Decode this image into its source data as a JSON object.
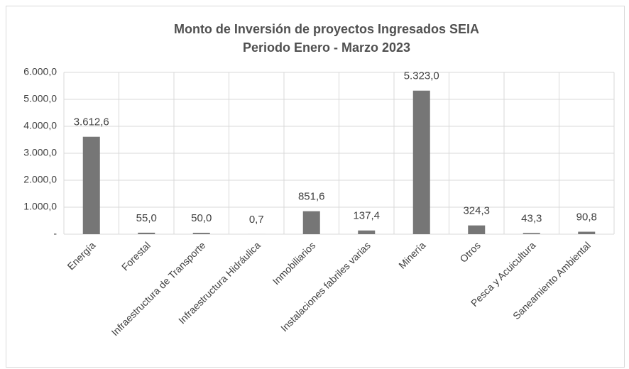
{
  "chart_data": {
    "type": "bar",
    "title": "Monto de Inversión de proyectos Ingresados SEIA",
    "subtitle": "Periodo Enero - Marzo 2023",
    "categories": [
      "Energía",
      "Forestal",
      "Infraestructura de Transporte",
      "Infraestructura Hidráulica",
      "Inmobiliarios",
      "Instalaciones fabriles varias",
      "Minería",
      "Otros",
      "Pesca y Acuicultura",
      "Saneamiento Ambiental"
    ],
    "values": [
      3612.6,
      55.0,
      50.0,
      0.7,
      851.6,
      137.4,
      5323.0,
      324.3,
      43.3,
      90.8
    ],
    "value_labels": [
      "3.612,6",
      "55,0",
      "50,0",
      "0,7",
      "851,6",
      "137,4",
      "5.323,0",
      "324,3",
      "43,3",
      "90,8"
    ],
    "color": "#767676",
    "ylim": [
      0,
      6000
    ],
    "yticks": [
      {
        "value": 0,
        "label": "-"
      },
      {
        "value": 1000,
        "label": "1.000,0"
      },
      {
        "value": 2000,
        "label": "2.000,0"
      },
      {
        "value": 3000,
        "label": "3.000,0"
      },
      {
        "value": 4000,
        "label": "4.000,0"
      },
      {
        "value": 5000,
        "label": "5.000,0"
      },
      {
        "value": 6000,
        "label": "6.000,0"
      }
    ],
    "grid": true
  }
}
